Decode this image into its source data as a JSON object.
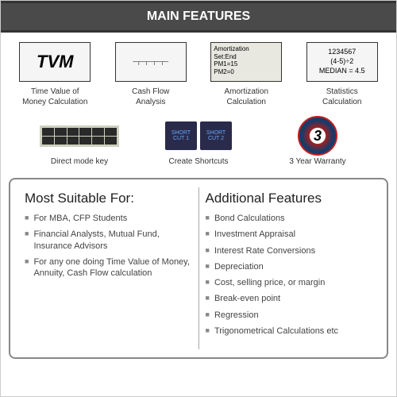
{
  "header": "MAIN FEATURES",
  "features1": [
    {
      "name": "tvm",
      "icon": "TVM",
      "label": "Time Value of\nMoney Calculation"
    },
    {
      "name": "cashflow",
      "icon": "",
      "label": "Cash Flow\nAnalysis"
    },
    {
      "name": "amort",
      "icon": "Amortization\nSet:End\nPM1=15\nPM2=0",
      "label": "Amortization\nCalculation"
    },
    {
      "name": "stats",
      "icon": "1234567\n(4-5)÷2\nMEDIAN = 4.5",
      "label": "Statistics\nCalculation"
    }
  ],
  "features2": [
    {
      "name": "directmode",
      "label": "Direct mode key"
    },
    {
      "name": "shortcuts",
      "s1": "SHORT\nCUT 1",
      "s2": "SHORT\nCUT 2",
      "label": "Create Shortcuts"
    },
    {
      "name": "warranty",
      "icon": "3",
      "label": "3 Year Warranty"
    }
  ],
  "suitable": {
    "title": "Most Suitable For:",
    "items": [
      "For MBA, CFP Students",
      "Financial Analysts, Mutual Fund, Insurance Advisors",
      "For any one doing Time Value of Money,  Annuity, Cash Flow calculation"
    ]
  },
  "additional": {
    "title": "Additional Features",
    "items": [
      "Bond Calculations",
      "Investment Appraisal",
      "Interest Rate Conversions",
      "Depreciation",
      "Cost, selling price, or margin",
      "Break-even point",
      "Regression",
      "Trigonometrical Calculations etc"
    ]
  }
}
